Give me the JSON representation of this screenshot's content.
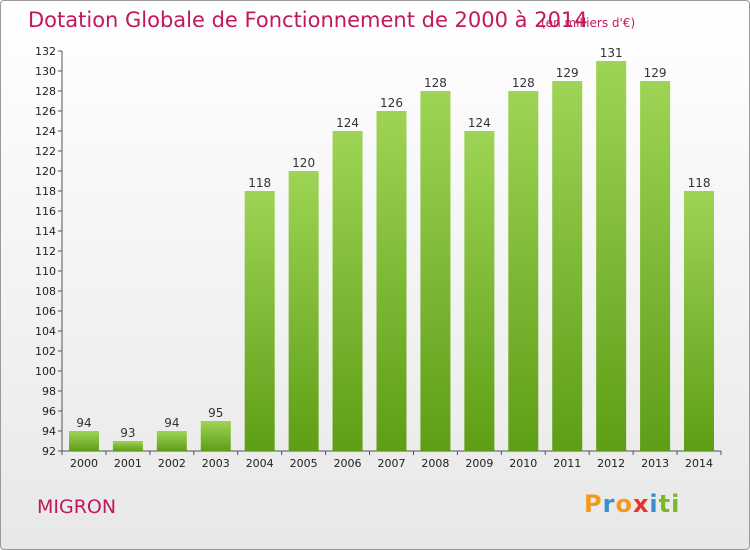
{
  "header": {
    "title": "Dotation Globale de Fonctionnement de 2000 à 2014",
    "unit": "(en milliers d'€)"
  },
  "footer": {
    "commune": "MIGRON",
    "logo_letters": [
      "P",
      "r",
      "o",
      "x",
      "i",
      "t",
      "i"
    ]
  },
  "colors": {
    "title": "#c2185b",
    "bar_top": "#9ed455",
    "bar_bottom": "#5e9e16",
    "logo": [
      "#f29a1d",
      "#3b8ed0",
      "#f29a1d",
      "#e5342a",
      "#3b8ed0",
      "#7bb928",
      "#7bb928"
    ]
  },
  "chart_data": {
    "type": "bar",
    "categories": [
      "2000",
      "2001",
      "2002",
      "2003",
      "2004",
      "2005",
      "2006",
      "2007",
      "2008",
      "2009",
      "2010",
      "2011",
      "2012",
      "2013",
      "2014"
    ],
    "values": [
      94,
      93,
      94,
      95,
      118,
      120,
      124,
      126,
      128,
      124,
      128,
      129,
      131,
      129,
      118
    ],
    "ylim": [
      92,
      132
    ],
    "yticks": [
      92,
      94,
      96,
      98,
      100,
      102,
      104,
      106,
      108,
      110,
      112,
      114,
      116,
      118,
      120,
      122,
      124,
      126,
      128,
      130,
      132
    ],
    "grid": false,
    "title": "Dotation Globale de Fonctionnement de 2000 à 2014",
    "xlabel": "",
    "ylabel": ""
  }
}
